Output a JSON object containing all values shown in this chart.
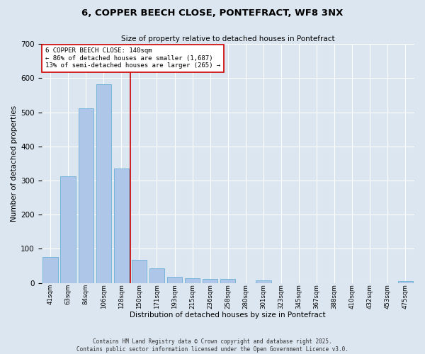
{
  "title_line1": "6, COPPER BEECH CLOSE, PONTEFRACT, WF8 3NX",
  "title_line2": "Size of property relative to detached houses in Pontefract",
  "xlabel": "Distribution of detached houses by size in Pontefract",
  "ylabel": "Number of detached properties",
  "bar_color": "#aec6e8",
  "bar_edge_color": "#6baed6",
  "background_color": "#dce6f0",
  "fig_background_color": "#dce6f0",
  "grid_color": "#ffffff",
  "annotation_line_color": "#cc0000",
  "annotation_box_color": "#cc0000",
  "annotation_text": "6 COPPER BEECH CLOSE: 140sqm\n← 86% of detached houses are smaller (1,687)\n13% of semi-detached houses are larger (265) →",
  "categories": [
    "41sqm",
    "63sqm",
    "84sqm",
    "106sqm",
    "128sqm",
    "150sqm",
    "171sqm",
    "193sqm",
    "215sqm",
    "236sqm",
    "258sqm",
    "280sqm",
    "301sqm",
    "323sqm",
    "345sqm",
    "367sqm",
    "388sqm",
    "410sqm",
    "432sqm",
    "453sqm",
    "475sqm"
  ],
  "values": [
    75,
    312,
    512,
    583,
    335,
    68,
    42,
    18,
    14,
    11,
    11,
    0,
    8,
    0,
    0,
    0,
    0,
    0,
    0,
    0,
    5
  ],
  "ylim": [
    0,
    700
  ],
  "yticks": [
    0,
    100,
    200,
    300,
    400,
    500,
    600,
    700
  ],
  "footnote_line1": "Contains HM Land Registry data © Crown copyright and database right 2025.",
  "footnote_line2": "Contains public sector information licensed under the Open Government Licence v3.0.",
  "vline_x_pos": 4.5,
  "figsize": [
    6.0,
    5.0
  ],
  "dpi": 100
}
